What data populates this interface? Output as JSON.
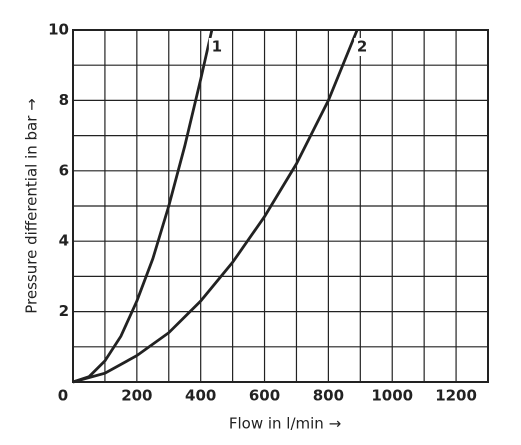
{
  "chart_data": {
    "type": "line",
    "xlabel": "Flow in l/min →",
    "ylabel": "Pressure differential in bar →",
    "xlim": [
      0,
      1300
    ],
    "ylim": [
      0,
      10
    ],
    "xticks": [
      0,
      200,
      400,
      600,
      800,
      1000,
      1200
    ],
    "yticks": [
      0,
      2,
      4,
      6,
      8,
      10
    ],
    "xminorticks": [
      100,
      300,
      500,
      700,
      900,
      1100,
      1300
    ],
    "yminorticks": [
      1,
      3,
      5,
      7,
      9
    ],
    "grid": true,
    "series": [
      {
        "name": "1",
        "color": "#222222",
        "x": [
          0,
          50,
          100,
          150,
          200,
          250,
          300,
          350,
          400,
          435
        ],
        "values": [
          0,
          0.15,
          0.6,
          1.3,
          2.3,
          3.5,
          5.0,
          6.7,
          8.6,
          10
        ]
      },
      {
        "name": "2",
        "color": "#222222",
        "x": [
          0,
          100,
          200,
          300,
          400,
          500,
          600,
          700,
          800,
          890
        ],
        "values": [
          0,
          0.25,
          0.75,
          1.4,
          2.3,
          3.4,
          4.7,
          6.2,
          8.0,
          10
        ]
      }
    ]
  }
}
